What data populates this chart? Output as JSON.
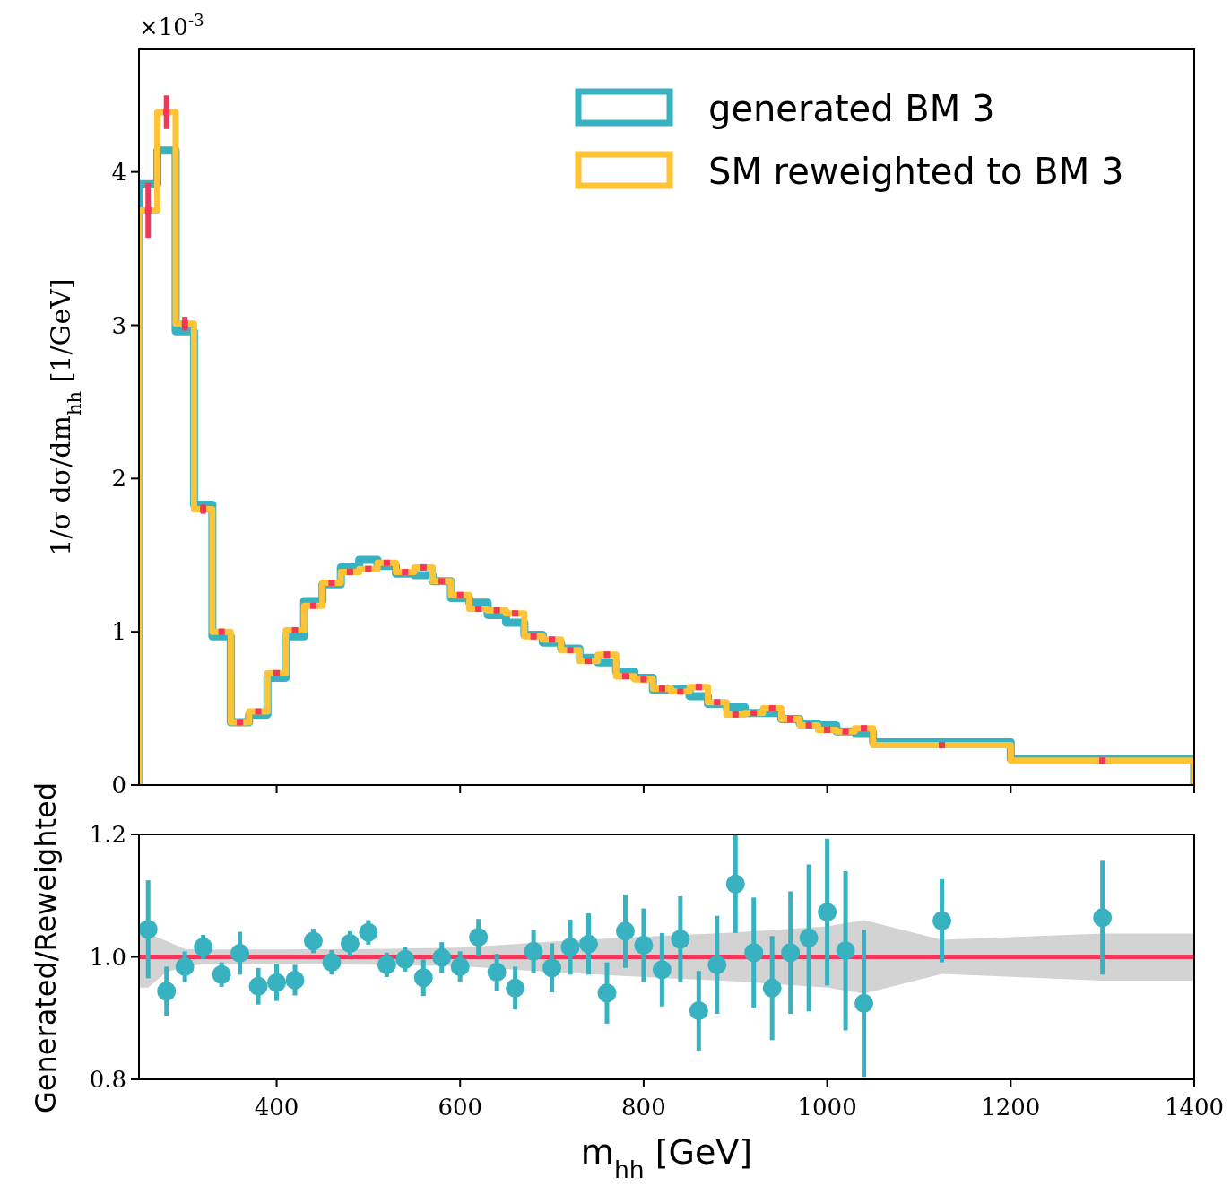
{
  "chart_data": [
    {
      "type": "histogram",
      "annotations": [
        "×10$^{-3}$"
      ],
      "ylabel": "1/σ dσ/dm$_{hh}$ [1/GeV]",
      "bins": [
        250,
        270,
        290,
        310,
        330,
        350,
        370,
        390,
        410,
        430,
        450,
        470,
        490,
        510,
        530,
        550,
        570,
        590,
        610,
        630,
        650,
        670,
        690,
        710,
        730,
        750,
        770,
        790,
        810,
        830,
        850,
        870,
        890,
        910,
        930,
        950,
        970,
        990,
        1010,
        1030,
        1050,
        1200,
        1400
      ],
      "series": [
        {
          "name": "generated BM 3",
          "color": "#38b2c0",
          "values": [
            3.92,
            4.14,
            2.96,
            1.83,
            0.97,
            0.41,
            0.46,
            0.7,
            0.97,
            1.2,
            1.31,
            1.42,
            1.47,
            1.43,
            1.38,
            1.37,
            1.33,
            1.22,
            1.19,
            1.11,
            1.06,
            0.98,
            0.93,
            0.89,
            0.83,
            0.8,
            0.74,
            0.7,
            0.62,
            0.63,
            0.58,
            0.53,
            0.51,
            0.47,
            0.47,
            0.43,
            0.4,
            0.39,
            0.35,
            0.34,
            0.28,
            0.17
          ]
        },
        {
          "name": "SM reweighted to BM 3",
          "color": "#fec336",
          "values": [
            3.75,
            4.39,
            3.01,
            1.8,
            1.0,
            0.41,
            0.48,
            0.73,
            1.01,
            1.17,
            1.32,
            1.39,
            1.41,
            1.45,
            1.39,
            1.42,
            1.33,
            1.24,
            1.15,
            1.14,
            1.12,
            0.97,
            0.95,
            0.88,
            0.81,
            0.85,
            0.71,
            0.69,
            0.63,
            0.61,
            0.64,
            0.54,
            0.46,
            0.47,
            0.5,
            0.43,
            0.39,
            0.36,
            0.35,
            0.37,
            0.26,
            0.16
          ]
        },
        {
          "type": "scatter",
          "marker": "square",
          "color": "#f2375a",
          "x": [
            260,
            280,
            300,
            320,
            340,
            360,
            380,
            400,
            420,
            440,
            460,
            480,
            500,
            520,
            540,
            560,
            580,
            600,
            620,
            640,
            660,
            680,
            700,
            720,
            740,
            760,
            780,
            800,
            820,
            840,
            860,
            880,
            900,
            920,
            940,
            960,
            980,
            1000,
            1020,
            1040,
            1125,
            1300
          ],
          "values": [
            3.75,
            4.39,
            3.01,
            1.8,
            1.0,
            0.41,
            0.48,
            0.73,
            1.01,
            1.17,
            1.32,
            1.39,
            1.41,
            1.45,
            1.39,
            1.42,
            1.33,
            1.24,
            1.15,
            1.14,
            1.12,
            0.97,
            0.95,
            0.88,
            0.81,
            0.85,
            0.71,
            0.69,
            0.63,
            0.61,
            0.64,
            0.54,
            0.46,
            0.47,
            0.5,
            0.43,
            0.39,
            0.36,
            0.35,
            0.37,
            0.26,
            0.16
          ],
          "errors": [
            0.18,
            0.11,
            0.045,
            0.03,
            0.02,
            0.01,
            0.01,
            0.015,
            0.015,
            0.015,
            0.015,
            0.015,
            0.015,
            0.015,
            0.015,
            0.015,
            0.015,
            0.015,
            0.015,
            0.015,
            0.015,
            0.015,
            0.015,
            0.015,
            0.015,
            0.02,
            0.015,
            0.015,
            0.015,
            0.015,
            0.02,
            0.015,
            0.015,
            0.015,
            0.015,
            0.015,
            0.015,
            0.015,
            0.015,
            0.02,
            0.01,
            0.01
          ]
        }
      ],
      "xlim": [
        250,
        1400
      ],
      "xticks": [
        400,
        600,
        800,
        1000,
        1200,
        1400
      ],
      "ylim": [
        0,
        4.8
      ],
      "yticks": [
        0,
        1,
        2,
        3,
        4
      ],
      "tick_labels": "y",
      "legend": "top right"
    },
    {
      "type": "scatter",
      "xlabel": "m$_{hh}$ [GeV]",
      "ylabel": "Generated/Reweighted",
      "series": [
        {
          "type": "line",
          "color": "#f2375a",
          "x": [
            250,
            260,
            280,
            300,
            320,
            400,
            500,
            600,
            700,
            800,
            900,
            1000,
            1040,
            1125,
            1300,
            1400
          ],
          "values": [
            1,
            1,
            1,
            1,
            1,
            1,
            1,
            1,
            1,
            1,
            1,
            1,
            1,
            1,
            1,
            1
          ],
          "lower": [
            0.95,
            0.95,
            0.975,
            0.984,
            0.988,
            0.988,
            0.987,
            0.985,
            0.975,
            0.967,
            0.96,
            0.95,
            0.94,
            0.972,
            0.961,
            0.961
          ],
          "upper": [
            1.038,
            1.038,
            1.026,
            1.013,
            1.012,
            1.012,
            1.013,
            1.015,
            1.025,
            1.033,
            1.04,
            1.05,
            1.06,
            1.028,
            1.038,
            1.038
          ]
        },
        {
          "type": "scatter",
          "marker": "circle",
          "color": "#38b2c0",
          "x": [
            260,
            280,
            300,
            320,
            340,
            360,
            380,
            400,
            420,
            440,
            460,
            480,
            500,
            520,
            540,
            560,
            580,
            600,
            620,
            640,
            660,
            680,
            700,
            720,
            740,
            760,
            780,
            800,
            820,
            840,
            860,
            880,
            900,
            920,
            940,
            960,
            980,
            1000,
            1020,
            1040,
            1125,
            1300
          ],
          "values": [
            1.045,
            0.944,
            0.984,
            1.016,
            0.971,
            1.006,
            0.952,
            0.958,
            0.962,
            1.026,
            0.991,
            1.022,
            1.04,
            0.987,
            0.996,
            0.966,
            0.999,
            0.984,
            1.032,
            0.975,
            0.949,
            1.009,
            0.982,
            1.016,
            1.021,
            0.941,
            1.042,
            1.019,
            0.979,
            1.029,
            0.912,
            0.987,
            1.119,
            1.007,
            0.949,
            1.007,
            1.031,
            1.073,
            1.01,
            0.924,
            1.059,
            1.064
          ],
          "errors": [
            0.08,
            0.04,
            0.025,
            0.02,
            0.02,
            0.035,
            0.03,
            0.03,
            0.025,
            0.02,
            0.02,
            0.02,
            0.02,
            0.02,
            0.02,
            0.03,
            0.025,
            0.025,
            0.03,
            0.03,
            0.035,
            0.035,
            0.04,
            0.045,
            0.05,
            0.05,
            0.06,
            0.06,
            0.06,
            0.07,
            0.065,
            0.08,
            0.08,
            0.09,
            0.085,
            0.1,
            0.12,
            0.12,
            0.13,
            0.12,
            0.068,
            0.093
          ]
        }
      ],
      "xlim": [
        250,
        1400
      ],
      "xticks": [
        400,
        600,
        800,
        1000,
        1200,
        1400
      ],
      "ylim": [
        0.8,
        1.2
      ],
      "yticks": [
        {
          "value": 0.8,
          "label": "0.8"
        },
        {
          "value": 1.0,
          "label": "1.0"
        },
        {
          "value": 1.2,
          "label": "1.2"
        }
      ]
    }
  ]
}
